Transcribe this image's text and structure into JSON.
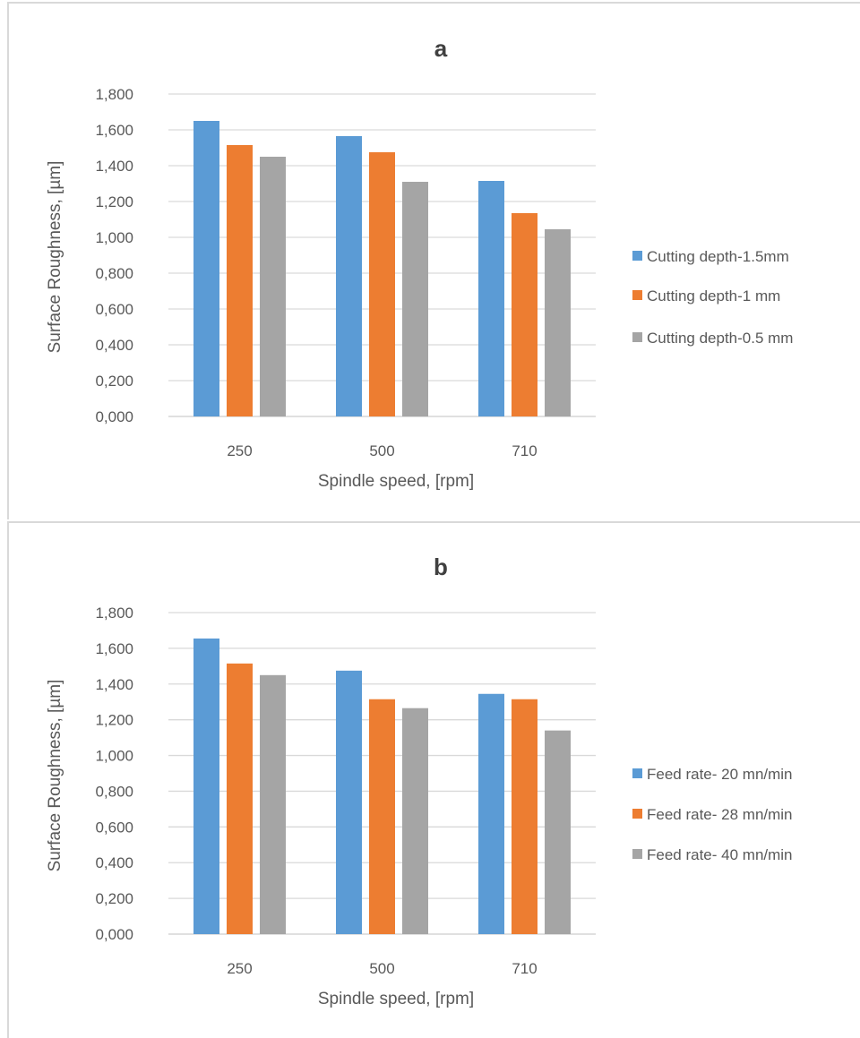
{
  "colors": {
    "series1": "#5b9bd5",
    "series2": "#ed7d31",
    "series3": "#a5a5a5",
    "grid": "#d9d9d9",
    "text": "#595959"
  },
  "chart_data": [
    {
      "type": "bar",
      "title": "a",
      "categories": [
        "250",
        "500",
        "710"
      ],
      "series": [
        {
          "name": "Cutting depth-1.5mm",
          "values": [
            1.65,
            1.565,
            1.315
          ]
        },
        {
          "name": "Cutting depth-1 mm",
          "values": [
            1.515,
            1.475,
            1.135
          ]
        },
        {
          "name": "Cutting depth-0.5 mm",
          "values": [
            1.45,
            1.31,
            1.045
          ]
        }
      ],
      "xlabel": "Spindle speed, [rpm]",
      "ylabel": "Surface Roughness, [µm]",
      "ylim": [
        0,
        1.8
      ],
      "yticks": [
        "0,000",
        "0,200",
        "0,400",
        "0,600",
        "0,800",
        "1,000",
        "1,200",
        "1,400",
        "1,600",
        "1,800"
      ],
      "grid": true,
      "legend": "right"
    },
    {
      "type": "bar",
      "title": "b",
      "categories": [
        "250",
        "500",
        "710"
      ],
      "series": [
        {
          "name": "Feed rate- 20 mn/min",
          "values": [
            1.655,
            1.475,
            1.345
          ]
        },
        {
          "name": "Feed rate- 28 mn/min",
          "values": [
            1.515,
            1.315,
            1.315
          ]
        },
        {
          "name": "Feed rate- 40 mn/min",
          "values": [
            1.45,
            1.265,
            1.14
          ]
        }
      ],
      "xlabel": "Spindle speed, [rpm]",
      "ylabel": "Surface Roughness, [µm]",
      "ylim": [
        0,
        1.8
      ],
      "yticks": [
        "0,000",
        "0,200",
        "0,400",
        "0,600",
        "0,800",
        "1,000",
        "1,200",
        "1,400",
        "1,600",
        "1,800"
      ],
      "grid": true,
      "legend": "right"
    }
  ]
}
